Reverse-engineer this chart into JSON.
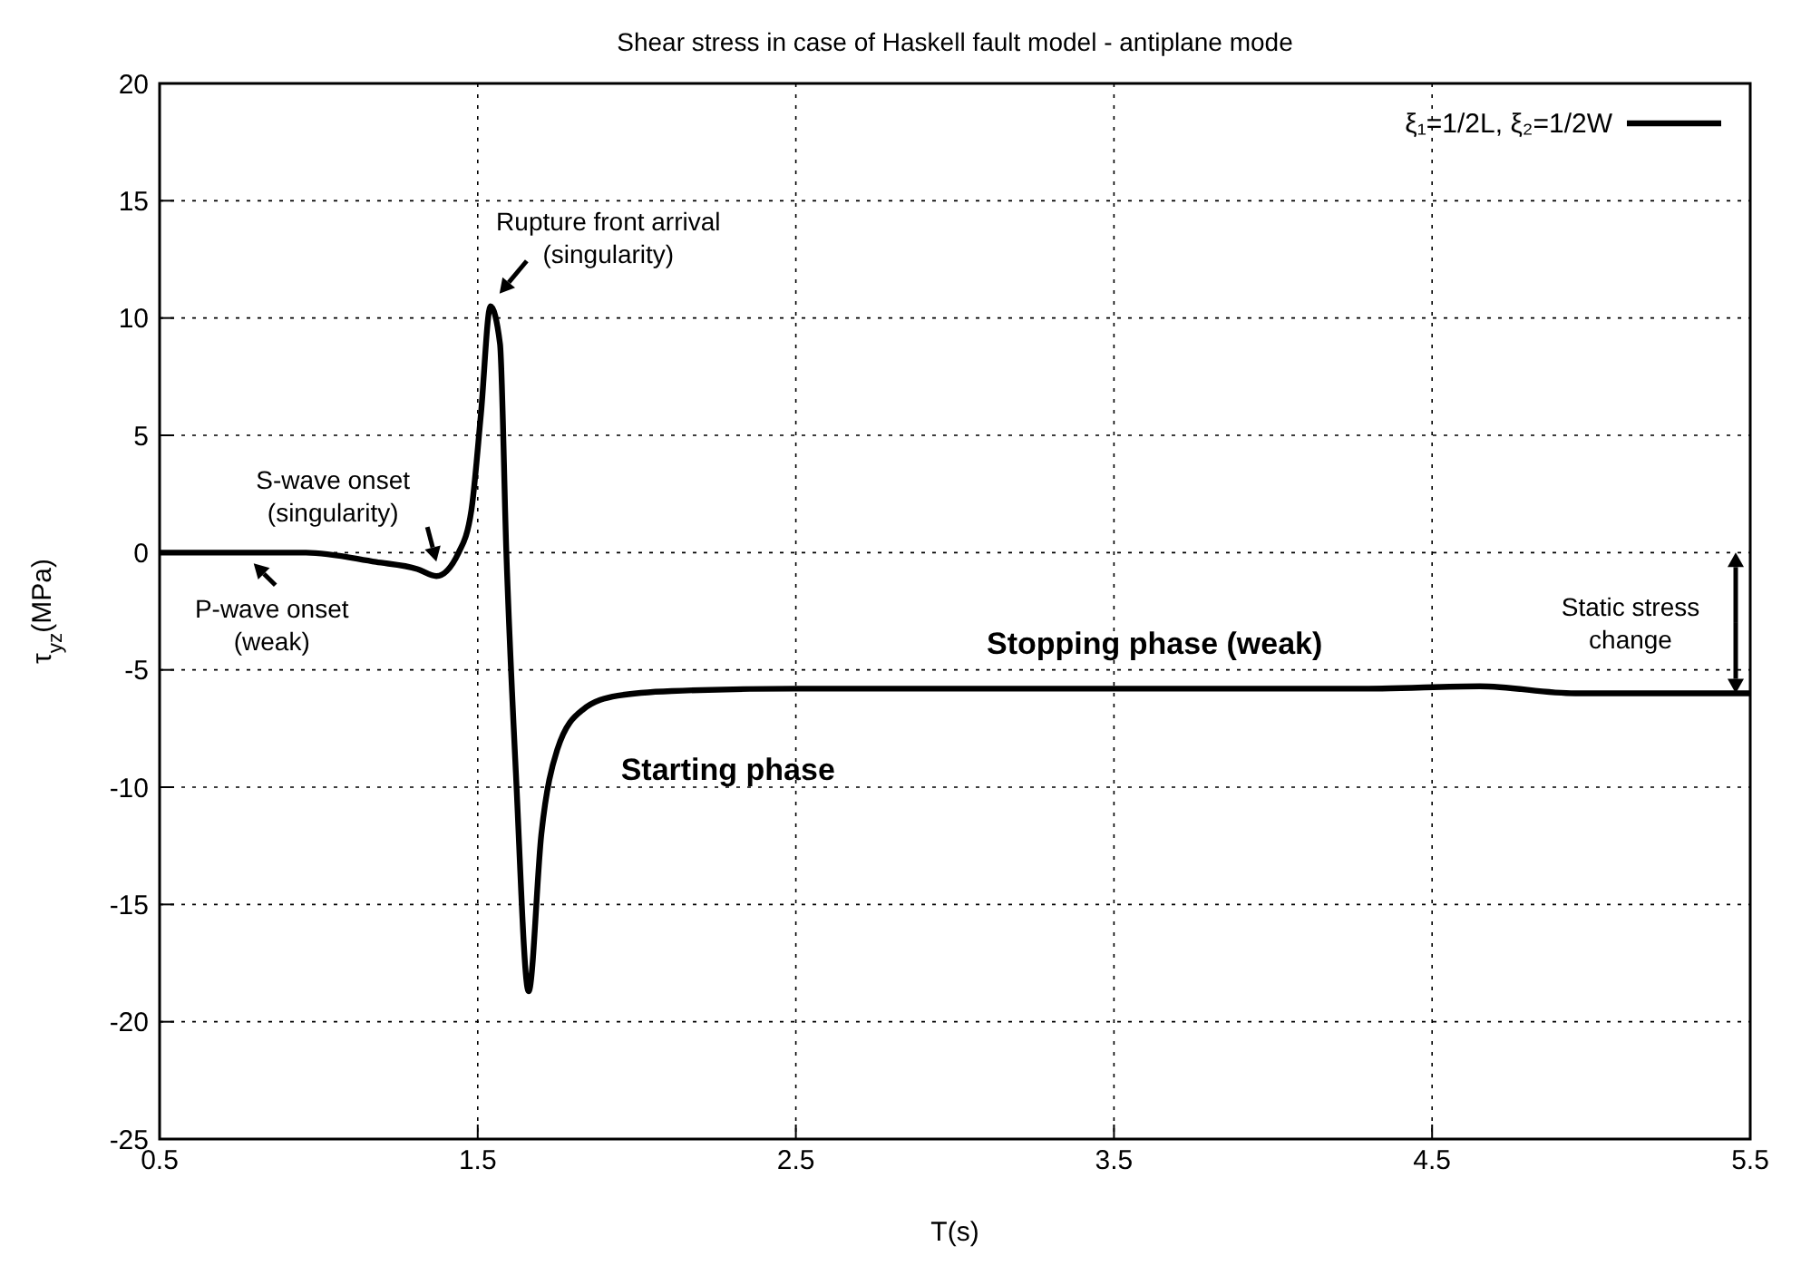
{
  "chart_data": {
    "type": "line",
    "title": "Shear stress in case of Haskell fault model - antiplane mode",
    "xlabel": "T(s)",
    "ylabel": "τ$_{yz}$(MPa)",
    "x": [
      0.5,
      0.75,
      0.96,
      1.18,
      1.31,
      1.37,
      1.44,
      1.48,
      1.51,
      1.54,
      1.57,
      1.59,
      1.62,
      1.66,
      1.7,
      1.75,
      1.83,
      1.94,
      2.11,
      2.5,
      3.5,
      4.3,
      4.65,
      4.95,
      5.5
    ],
    "series": [
      {
        "name": "ξ₁=1/2L, ξ₂=1/2W",
        "color": "#000000",
        "values": [
          0,
          0,
          0,
          -0.4,
          -0.7,
          -1.0,
          0,
          1.8,
          5.9,
          10.5,
          8.9,
          0,
          -9.4,
          -18.7,
          -12,
          -8.4,
          -6.7,
          -6.1,
          -5.9,
          -5.8,
          -5.8,
          -5.8,
          -5.7,
          -6.0,
          -6.0
        ]
      }
    ],
    "xlim": [
      0.5,
      5.5
    ],
    "xticks": [
      0.5,
      1.5,
      2.5,
      3.5,
      4.5,
      5.5
    ],
    "ylim": [
      -25,
      20
    ],
    "yticks": [
      -25,
      -20,
      -15,
      -10,
      -5,
      0,
      5,
      10,
      15,
      20
    ],
    "grid": true,
    "legend": "top right",
    "marker": "none",
    "line_style": "solid",
    "annotations": [
      {
        "text": "Rupture front arrival\n(singularity)",
        "x": 1.54,
        "y": 10.5
      },
      {
        "text": "S-wave onset\n(singularity)",
        "x": 1.37,
        "y": -1.0
      },
      {
        "text": "P-wave onset\n(weak)",
        "x": 0.79,
        "y": 0
      },
      "Static stress\nchange",
      "Starting phase",
      "Stopping phase (weak)"
    ]
  }
}
